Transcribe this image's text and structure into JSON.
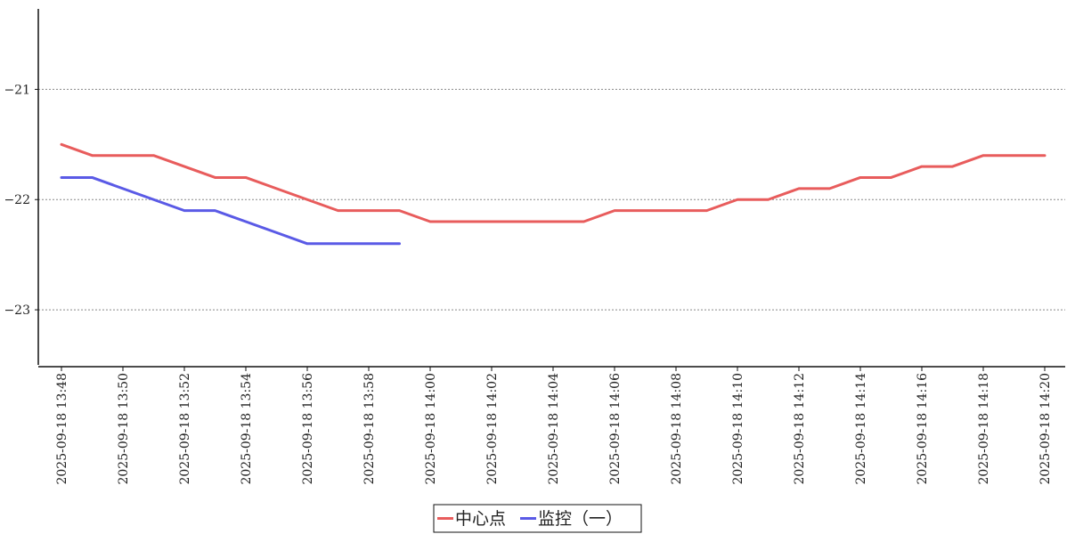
{
  "chart_data": {
    "type": "line",
    "title": "",
    "xlabel": "",
    "ylabel": "",
    "x": [
      "2025-09-18 13:48",
      "2025-09-18 13:49",
      "2025-09-18 13:50",
      "2025-09-18 13:51",
      "2025-09-18 13:52",
      "2025-09-18 13:53",
      "2025-09-18 13:54",
      "2025-09-18 13:55",
      "2025-09-18 13:56",
      "2025-09-18 13:57",
      "2025-09-18 13:58",
      "2025-09-18 13:59",
      "2025-09-18 14:00",
      "2025-09-18 14:01",
      "2025-09-18 14:02",
      "2025-09-18 14:03",
      "2025-09-18 14:04",
      "2025-09-18 14:05",
      "2025-09-18 14:06",
      "2025-09-18 14:07",
      "2025-09-18 14:08",
      "2025-09-18 14:09",
      "2025-09-18 14:10",
      "2025-09-18 14:11",
      "2025-09-18 14:12",
      "2025-09-18 14:13",
      "2025-09-18 14:14",
      "2025-09-18 14:15",
      "2025-09-18 14:16",
      "2025-09-18 14:17",
      "2025-09-18 14:18",
      "2025-09-18 14:19",
      "2025-09-18 14:20"
    ],
    "x_tick_labels": [
      "2025-09-18 13:48",
      "2025-09-18 13:50",
      "2025-09-18 13:52",
      "2025-09-18 13:54",
      "2025-09-18 13:56",
      "2025-09-18 13:58",
      "2025-09-18 14:00",
      "2025-09-18 14:02",
      "2025-09-18 14:04",
      "2025-09-18 14:06",
      "2025-09-18 14:08",
      "2025-09-18 14:10",
      "2025-09-18 14:12",
      "2025-09-18 14:14",
      "2025-09-18 14:16",
      "2025-09-18 14:18",
      "2025-09-18 14:20"
    ],
    "y_ticks": [
      -21,
      -22,
      -23
    ],
    "y_tick_labels": [
      "−21",
      "−22",
      "−23"
    ],
    "ylim": [
      -23.5,
      -20.27
    ],
    "grid": "horizontal dotted",
    "legend_position": "bottom-center",
    "series": [
      {
        "name": "中心点",
        "color": "#e85c5c",
        "values": [
          -21.5,
          -21.6,
          -21.6,
          -21.6,
          -21.7,
          -21.8,
          -21.8,
          -21.9,
          -22.0,
          -22.1,
          -22.1,
          -22.1,
          -22.2,
          -22.2,
          -22.2,
          -22.2,
          -22.2,
          -22.2,
          -22.1,
          -22.1,
          -22.1,
          -22.1,
          -22.0,
          -22.0,
          -21.9,
          -21.9,
          -21.8,
          -21.8,
          -21.7,
          -21.7,
          -21.6,
          -21.6,
          -21.6
        ]
      },
      {
        "name": "监控（一）",
        "color": "#5a5ae6",
        "values": [
          -21.8,
          -21.8,
          -21.9,
          -22.0,
          -22.1,
          -22.1,
          -22.2,
          -22.3,
          -22.4,
          -22.4,
          -22.4,
          -22.4,
          null,
          null,
          null,
          null,
          null,
          null,
          null,
          null,
          null,
          null,
          null,
          null,
          null,
          null,
          null,
          null,
          null,
          null,
          null,
          null,
          null
        ]
      }
    ]
  }
}
